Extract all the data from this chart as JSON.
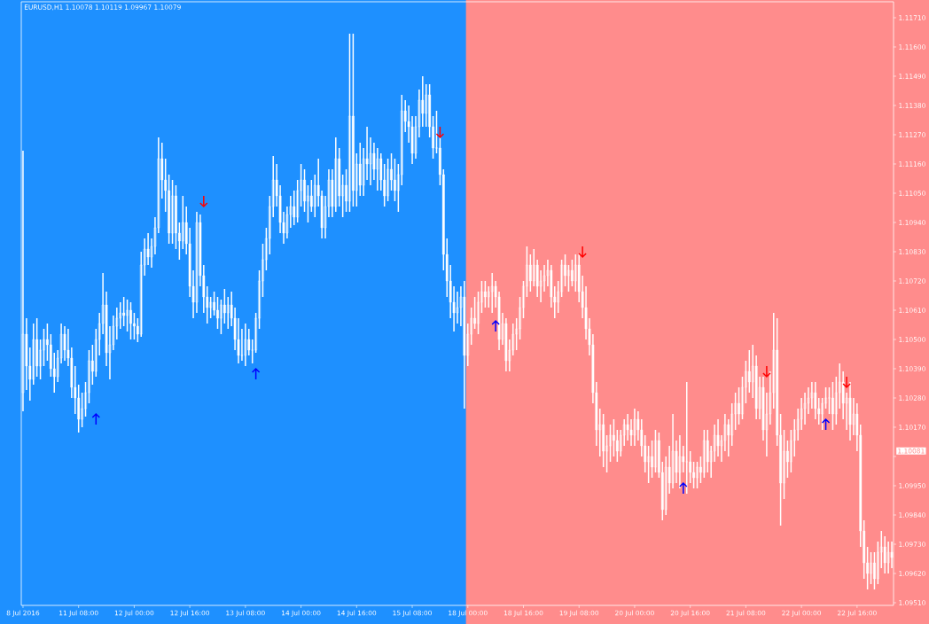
{
  "chart_data": {
    "type": "candlestick",
    "title": "EURUSD,H1  1.10078 1.10119 1.09967 1.10079",
    "color": "#ffffff",
    "categories": [
      "8 Jul 2016",
      null,
      null,
      null,
      null,
      null,
      null,
      null,
      null,
      null,
      null,
      null,
      null,
      null,
      null,
      null,
      "11 Jul 08:00",
      null,
      null,
      null,
      null,
      null,
      null,
      null,
      null,
      null,
      null,
      null,
      null,
      null,
      null,
      null,
      "12 Jul 00:00",
      null,
      null,
      null,
      null,
      null,
      null,
      null,
      null,
      null,
      null,
      null,
      null,
      null,
      null,
      null,
      "12 Jul 16:00",
      null,
      null,
      null,
      null,
      null,
      null,
      null,
      null,
      null,
      null,
      null,
      null,
      null,
      null,
      null,
      "13 Jul 08:00",
      null,
      null,
      null,
      null,
      null,
      null,
      null,
      null,
      null,
      null,
      null,
      null,
      null,
      null,
      null,
      "14 Jul 00:00",
      null,
      null,
      null,
      null,
      null,
      null,
      null,
      null,
      null,
      null,
      null,
      null,
      null,
      null,
      null,
      "14 Jul 16:00",
      null,
      null,
      null,
      null,
      null,
      null,
      null,
      null,
      null,
      null,
      null,
      null,
      null,
      null,
      null,
      "15 Jul 08:00",
      null,
      null,
      null,
      null,
      null,
      null,
      null,
      null,
      null,
      null,
      null,
      null,
      null,
      null,
      null,
      "18 Jul 00:00",
      null,
      null,
      null,
      null,
      null,
      null,
      null,
      null,
      null,
      null,
      null,
      null,
      null,
      null,
      null,
      "18 Jul 16:00",
      null,
      null,
      null,
      null,
      null,
      null,
      null,
      null,
      null,
      null,
      null,
      null,
      null,
      null,
      null,
      "19 Jul 08:00",
      null,
      null,
      null,
      null,
      null,
      null,
      null,
      null,
      null,
      null,
      null,
      null,
      null,
      null,
      null,
      "20 Jul 00:00",
      null,
      null,
      null,
      null,
      null,
      null,
      null,
      null,
      null,
      null,
      null,
      null,
      null,
      null,
      null,
      "20 Jul 16:00",
      null,
      null,
      null,
      null,
      null,
      null,
      null,
      null,
      null,
      null,
      null,
      null,
      null,
      null,
      null,
      "21 Jul 08:00",
      null,
      null,
      null,
      null,
      null,
      null,
      null,
      null,
      null,
      null,
      null,
      null,
      null,
      null,
      null,
      "22 Jul 00:00",
      null,
      null,
      null,
      null,
      null,
      null,
      null,
      null,
      null,
      null,
      null,
      null,
      null,
      null,
      null,
      "22 Jul 16:00",
      null,
      null,
      null,
      null,
      null,
      null,
      null,
      null,
      null,
      null
    ],
    "ohlc": [
      [
        1.103,
        1.1121,
        1.1023,
        1.1052
      ],
      [
        1.1052,
        1.1058,
        1.1031,
        1.104
      ],
      [
        1.104,
        1.1047,
        1.1027,
        1.1035
      ],
      [
        1.1035,
        1.1056,
        1.1033,
        1.105
      ],
      [
        1.105,
        1.1058,
        1.1036,
        1.104
      ],
      [
        1.104,
        1.105,
        1.1035,
        1.1046
      ],
      [
        1.1046,
        1.1054,
        1.104,
        1.105
      ],
      [
        1.105,
        1.1056,
        1.1042,
        1.1048
      ],
      [
        1.1048,
        1.1052,
        1.1036,
        1.1039
      ],
      [
        1.1039,
        1.1045,
        1.103,
        1.1036
      ],
      [
        1.1036,
        1.1046,
        1.1034,
        1.1043
      ],
      [
        1.1043,
        1.1056,
        1.1041,
        1.1052
      ],
      [
        1.1052,
        1.1055,
        1.1042,
        1.1046
      ],
      [
        1.1046,
        1.1054,
        1.104,
        1.1043
      ],
      [
        1.1043,
        1.1047,
        1.1028,
        1.1032
      ],
      [
        1.1032,
        1.104,
        1.1022,
        1.1028
      ],
      [
        1.1028,
        1.1033,
        1.1015,
        1.102
      ],
      [
        1.102,
        1.103,
        1.1017,
        1.1024
      ],
      [
        1.1024,
        1.1034,
        1.1021,
        1.103
      ],
      [
        1.103,
        1.1046,
        1.1026,
        1.1042
      ],
      [
        1.1042,
        1.1048,
        1.1033,
        1.1038
      ],
      [
        1.1038,
        1.1054,
        1.1036,
        1.105
      ],
      [
        1.105,
        1.106,
        1.1044,
        1.1056
      ],
      [
        1.1056,
        1.1075,
        1.1052,
        1.1063
      ],
      [
        1.1063,
        1.1068,
        1.104,
        1.1045
      ],
      [
        1.1045,
        1.1055,
        1.1035,
        1.1048
      ],
      [
        1.1048,
        1.1059,
        1.1046,
        1.1055
      ],
      [
        1.1055,
        1.1062,
        1.105,
        1.1058
      ],
      [
        1.1058,
        1.1064,
        1.1054,
        1.106
      ],
      [
        1.106,
        1.1066,
        1.1055,
        1.1059
      ],
      [
        1.1059,
        1.1065,
        1.1053,
        1.1061
      ],
      [
        1.1061,
        1.1064,
        1.105,
        1.1056
      ],
      [
        1.1056,
        1.106,
        1.105,
        1.1055
      ],
      [
        1.1055,
        1.1058,
        1.1049,
        1.1052
      ],
      [
        1.1052,
        1.1083,
        1.1051,
        1.1078
      ],
      [
        1.1078,
        1.1088,
        1.1074,
        1.1084
      ],
      [
        1.1084,
        1.109,
        1.1078,
        1.1081
      ],
      [
        1.1081,
        1.1088,
        1.1077,
        1.1085
      ],
      [
        1.1085,
        1.1096,
        1.1082,
        1.1092
      ],
      [
        1.1092,
        1.1126,
        1.109,
        1.1118
      ],
      [
        1.1118,
        1.1124,
        1.1103,
        1.111
      ],
      [
        1.111,
        1.1118,
        1.1098,
        1.1106
      ],
      [
        1.1106,
        1.1112,
        1.1086,
        1.109
      ],
      [
        1.109,
        1.111,
        1.1086,
        1.1104
      ],
      [
        1.1104,
        1.1108,
        1.1084,
        1.109
      ],
      [
        1.109,
        1.1094,
        1.108,
        1.1087
      ],
      [
        1.1087,
        1.1104,
        1.1084,
        1.1094
      ],
      [
        1.1094,
        1.11,
        1.1082,
        1.1086
      ],
      [
        1.1086,
        1.1092,
        1.1066,
        1.107
      ],
      [
        1.107,
        1.1076,
        1.1058,
        1.1064
      ],
      [
        1.1064,
        1.1098,
        1.106,
        1.1094
      ],
      [
        1.1094,
        1.1097,
        1.107,
        1.1074
      ],
      [
        1.1074,
        1.1078,
        1.106,
        1.1066
      ],
      [
        1.1066,
        1.107,
        1.1056,
        1.1062
      ],
      [
        1.1062,
        1.1066,
        1.1058,
        1.1064
      ],
      [
        1.1064,
        1.1068,
        1.1059,
        1.1061
      ],
      [
        1.1061,
        1.1066,
        1.1054,
        1.1058
      ],
      [
        1.1058,
        1.1065,
        1.1052,
        1.1063
      ],
      [
        1.1063,
        1.1069,
        1.1056,
        1.106
      ],
      [
        1.106,
        1.1066,
        1.1054,
        1.1063
      ],
      [
        1.1063,
        1.1068,
        1.1055,
        1.1058
      ],
      [
        1.1058,
        1.1062,
        1.1046,
        1.105
      ],
      [
        1.105,
        1.1058,
        1.1041,
        1.1044
      ],
      [
        1.1044,
        1.1054,
        1.1042,
        1.1044
      ],
      [
        1.1044,
        1.1056,
        1.104,
        1.105
      ],
      [
        1.105,
        1.1054,
        1.1044,
        1.1046
      ],
      [
        1.1046,
        1.105,
        1.1041,
        1.1046
      ],
      [
        1.1046,
        1.106,
        1.1045,
        1.1058
      ],
      [
        1.1058,
        1.1076,
        1.1054,
        1.1072
      ],
      [
        1.1072,
        1.1086,
        1.1066,
        1.108
      ],
      [
        1.108,
        1.1092,
        1.1076,
        1.1088
      ],
      [
        1.1088,
        1.1104,
        1.1082,
        1.11
      ],
      [
        1.11,
        1.1119,
        1.1096,
        1.111
      ],
      [
        1.111,
        1.1116,
        1.11,
        1.1104
      ],
      [
        1.1104,
        1.1108,
        1.109,
        1.1094
      ],
      [
        1.1094,
        1.1098,
        1.1086,
        1.109
      ],
      [
        1.109,
        1.11,
        1.1088,
        1.1097
      ],
      [
        1.1097,
        1.1104,
        1.1092,
        1.11
      ],
      [
        1.11,
        1.1106,
        1.1093,
        1.1096
      ],
      [
        1.1096,
        1.111,
        1.1094,
        1.1106
      ],
      [
        1.1106,
        1.1116,
        1.11,
        1.111
      ],
      [
        1.111,
        1.1114,
        1.1098,
        1.1102
      ],
      [
        1.1102,
        1.1108,
        1.1094,
        1.1104
      ],
      [
        1.1104,
        1.111,
        1.1098,
        1.11
      ],
      [
        1.11,
        1.1112,
        1.1096,
        1.1108
      ],
      [
        1.1108,
        1.1118,
        1.11,
        1.1104
      ],
      [
        1.1104,
        1.1106,
        1.1088,
        1.1092
      ],
      [
        1.1092,
        1.1104,
        1.1088,
        1.11
      ],
      [
        1.11,
        1.1114,
        1.1096,
        1.111
      ],
      [
        1.111,
        1.1114,
        1.1096,
        1.11
      ],
      [
        1.11,
        1.1126,
        1.1098,
        1.1118
      ],
      [
        1.1118,
        1.1122,
        1.11,
        1.1104
      ],
      [
        1.1104,
        1.1112,
        1.1096,
        1.1108
      ],
      [
        1.1108,
        1.1114,
        1.1098,
        1.1102
      ],
      [
        1.1102,
        1.1165,
        1.1098,
        1.1134
      ],
      [
        1.1134,
        1.1165,
        1.11,
        1.1106
      ],
      [
        1.1106,
        1.112,
        1.11,
        1.1116
      ],
      [
        1.1116,
        1.1124,
        1.1104,
        1.1108
      ],
      [
        1.1108,
        1.1122,
        1.1104,
        1.1118
      ],
      [
        1.1118,
        1.113,
        1.111,
        1.1116
      ],
      [
        1.1116,
        1.1126,
        1.1108,
        1.112
      ],
      [
        1.112,
        1.1124,
        1.111,
        1.1114
      ],
      [
        1.1114,
        1.1122,
        1.1106,
        1.1118
      ],
      [
        1.1118,
        1.112,
        1.1106,
        1.111
      ],
      [
        1.111,
        1.1116,
        1.11,
        1.1104
      ],
      [
        1.1104,
        1.1118,
        1.1102,
        1.1114
      ],
      [
        1.1114,
        1.112,
        1.1106,
        1.111
      ],
      [
        1.111,
        1.1118,
        1.1102,
        1.1106
      ],
      [
        1.1106,
        1.1116,
        1.1098,
        1.1112
      ],
      [
        1.1112,
        1.1142,
        1.1108,
        1.1136
      ],
      [
        1.1136,
        1.114,
        1.1128,
        1.1132
      ],
      [
        1.1132,
        1.1138,
        1.1124,
        1.113
      ],
      [
        1.113,
        1.1134,
        1.1116,
        1.112
      ],
      [
        1.112,
        1.1134,
        1.1118,
        1.113
      ],
      [
        1.113,
        1.1144,
        1.1126,
        1.114
      ],
      [
        1.114,
        1.1149,
        1.113,
        1.1135
      ],
      [
        1.1135,
        1.1146,
        1.113,
        1.1142
      ],
      [
        1.1142,
        1.1146,
        1.1126,
        1.113
      ],
      [
        1.113,
        1.1134,
        1.1118,
        1.1122
      ],
      [
        1.1122,
        1.1136,
        1.112,
        1.1122
      ],
      [
        1.1122,
        1.1126,
        1.1108,
        1.1112
      ],
      [
        1.1112,
        1.1114,
        1.1076,
        1.1082
      ],
      [
        1.1082,
        1.1088,
        1.1066,
        1.1072
      ],
      [
        1.1072,
        1.1078,
        1.1058,
        1.1064
      ],
      [
        1.1064,
        1.107,
        1.1053,
        1.106
      ],
      [
        1.106,
        1.1068,
        1.1056,
        1.1062
      ],
      [
        1.1062,
        1.107,
        1.1055,
        1.1066
      ],
      [
        1.1066,
        1.1072,
        1.1024,
        1.1044
      ],
      [
        1.1044,
        1.1056,
        1.104,
        1.1052
      ],
      [
        1.1052,
        1.1062,
        1.1048,
        1.1058
      ],
      [
        1.1058,
        1.1066,
        1.1054,
        1.1056
      ],
      [
        1.1056,
        1.1068,
        1.1052,
        1.1064
      ],
      [
        1.1064,
        1.1072,
        1.106,
        1.1068
      ],
      [
        1.1068,
        1.1072,
        1.1062,
        1.1066
      ],
      [
        1.1066,
        1.107,
        1.1062,
        1.1068
      ],
      [
        1.1068,
        1.1075,
        1.106,
        1.107
      ],
      [
        1.107,
        1.1072,
        1.1062,
        1.1066
      ],
      [
        1.1066,
        1.1068,
        1.1046,
        1.105
      ],
      [
        1.105,
        1.106,
        1.1048,
        1.1056
      ],
      [
        1.1056,
        1.1058,
        1.1038,
        1.1042
      ],
      [
        1.1042,
        1.105,
        1.1038,
        1.1046
      ],
      [
        1.1046,
        1.1056,
        1.1044,
        1.1052
      ],
      [
        1.1052,
        1.1058,
        1.1046,
        1.1054
      ],
      [
        1.1054,
        1.1066,
        1.105,
        1.1062
      ],
      [
        1.1062,
        1.1072,
        1.1058,
        1.107
      ],
      [
        1.107,
        1.1085,
        1.1066,
        1.1078
      ],
      [
        1.1078,
        1.1082,
        1.1068,
        1.1072
      ],
      [
        1.1072,
        1.1084,
        1.107,
        1.1078
      ],
      [
        1.1078,
        1.108,
        1.1066,
        1.107
      ],
      [
        1.107,
        1.1076,
        1.1064,
        1.1072
      ],
      [
        1.1072,
        1.1078,
        1.1068,
        1.1074
      ],
      [
        1.1074,
        1.108,
        1.107,
        1.1076
      ],
      [
        1.1076,
        1.1078,
        1.1062,
        1.1066
      ],
      [
        1.1066,
        1.107,
        1.1058,
        1.1064
      ],
      [
        1.1064,
        1.1072,
        1.106,
        1.1068
      ],
      [
        1.1068,
        1.108,
        1.1066,
        1.1078
      ],
      [
        1.1078,
        1.1082,
        1.107,
        1.1074
      ],
      [
        1.1074,
        1.1078,
        1.1068,
        1.1076
      ],
      [
        1.1076,
        1.108,
        1.107,
        1.1072
      ],
      [
        1.1072,
        1.1082,
        1.1068,
        1.1078
      ],
      [
        1.1078,
        1.1082,
        1.1064,
        1.1068
      ],
      [
        1.1068,
        1.1074,
        1.1058,
        1.1062
      ],
      [
        1.1062,
        1.107,
        1.105,
        1.1054
      ],
      [
        1.1054,
        1.1058,
        1.1044,
        1.1048
      ],
      [
        1.1048,
        1.1052,
        1.1026,
        1.103
      ],
      [
        1.103,
        1.1034,
        1.101,
        1.1016
      ],
      [
        1.1016,
        1.1024,
        1.1006,
        1.1018
      ],
      [
        1.1018,
        1.1022,
        1.1002,
        1.1008
      ],
      [
        1.1008,
        1.1014,
        1.1,
        1.101
      ],
      [
        1.101,
        1.1018,
        1.1004,
        1.1014
      ],
      [
        1.1014,
        1.102,
        1.1006,
        1.1012
      ],
      [
        1.1012,
        1.1016,
        1.1004,
        1.1008
      ],
      [
        1.1008,
        1.1016,
        1.1006,
        1.1014
      ],
      [
        1.1014,
        1.102,
        1.101,
        1.1018
      ],
      [
        1.1018,
        1.1022,
        1.1012,
        1.1016
      ],
      [
        1.1016,
        1.102,
        1.101,
        1.1014
      ],
      [
        1.1014,
        1.1024,
        1.101,
        1.102
      ],
      [
        1.102,
        1.1023,
        1.1012,
        1.1016
      ],
      [
        1.1016,
        1.102,
        1.1006,
        1.101
      ],
      [
        1.101,
        1.1014,
        1.1,
        1.1004
      ],
      [
        1.1004,
        1.101,
        1.0996,
        1.1006
      ],
      [
        1.1006,
        1.1012,
        1.0998,
        1.1002
      ],
      [
        1.1002,
        1.1016,
        1.1,
        1.1012
      ],
      [
        1.1012,
        1.1015,
        1.0998,
        1.1
      ],
      [
        1.1,
        1.1004,
        1.0982,
        1.0986
      ],
      [
        1.0986,
        1.1006,
        1.0984,
        1.1002
      ],
      [
        1.1002,
        1.101,
        1.0992,
        1.0996
      ],
      [
        1.0996,
        1.1022,
        1.0994,
        1.1008
      ],
      [
        1.1008,
        1.1012,
        1.0996,
        1.1
      ],
      [
        1.1,
        1.1014,
        1.0994,
        1.1006
      ],
      [
        1.1006,
        1.101,
        1.1,
        1.1004
      ],
      [
        1.1004,
        1.1034,
        1.0992,
        1.1004
      ],
      [
        1.1004,
        1.1008,
        1.0996,
        1.1
      ],
      [
        1.1,
        1.1004,
        1.0994,
        1.0998
      ],
      [
        1.0998,
        1.1004,
        1.0994,
        1.1002
      ],
      [
        1.1002,
        1.1006,
        1.0996,
        1.1
      ],
      [
        1.1,
        1.1016,
        1.0998,
        1.1012
      ],
      [
        1.1012,
        1.1016,
        1.1,
        1.1004
      ],
      [
        1.1004,
        1.101,
        1.0998,
        1.1008
      ],
      [
        1.1008,
        1.1018,
        1.1004,
        1.1014
      ],
      [
        1.1014,
        1.102,
        1.1006,
        1.101
      ],
      [
        1.101,
        1.1014,
        1.1004,
        1.1012
      ],
      [
        1.1012,
        1.1022,
        1.1008,
        1.1018
      ],
      [
        1.1018,
        1.102,
        1.1006,
        1.1014
      ],
      [
        1.1014,
        1.1026,
        1.101,
        1.1022
      ],
      [
        1.1022,
        1.103,
        1.1016,
        1.1026
      ],
      [
        1.1026,
        1.1032,
        1.1018,
        1.1022
      ],
      [
        1.1022,
        1.1036,
        1.102,
        1.1032
      ],
      [
        1.1032,
        1.1042,
        1.1026,
        1.1038
      ],
      [
        1.1038,
        1.1046,
        1.103,
        1.1034
      ],
      [
        1.1034,
        1.1048,
        1.1028,
        1.104
      ],
      [
        1.104,
        1.1044,
        1.102,
        1.1024
      ],
      [
        1.1024,
        1.1036,
        1.102,
        1.1032
      ],
      [
        1.1032,
        1.1036,
        1.1012,
        1.1016
      ],
      [
        1.1016,
        1.103,
        1.1006,
        1.1022
      ],
      [
        1.1022,
        1.1038,
        1.1018,
        1.103
      ],
      [
        1.103,
        1.106,
        1.1024,
        1.1046
      ],
      [
        1.1046,
        1.1058,
        1.101,
        1.1014
      ],
      [
        1.1014,
        1.1022,
        1.098,
        1.0996
      ],
      [
        1.0996,
        1.1016,
        1.099,
        1.1008
      ],
      [
        1.1008,
        1.1012,
        1.0998,
        1.1004
      ],
      [
        1.1004,
        1.1016,
        1.1,
        1.1012
      ],
      [
        1.1012,
        1.102,
        1.1006,
        1.1016
      ],
      [
        1.1016,
        1.1024,
        1.1012,
        1.102
      ],
      [
        1.102,
        1.1028,
        1.1016,
        1.1024
      ],
      [
        1.1024,
        1.103,
        1.1018,
        1.1026
      ],
      [
        1.1026,
        1.1032,
        1.1022,
        1.1028
      ],
      [
        1.1028,
        1.1034,
        1.1024,
        1.103
      ],
      [
        1.103,
        1.1034,
        1.102,
        1.1024
      ],
      [
        1.1024,
        1.1028,
        1.1018,
        1.1022
      ],
      [
        1.1022,
        1.1028,
        1.1016,
        1.1026
      ],
      [
        1.1026,
        1.1032,
        1.1024,
        1.1028
      ],
      [
        1.1028,
        1.1032,
        1.1022,
        1.1028
      ],
      [
        1.1028,
        1.1034,
        1.1016,
        1.1022
      ],
      [
        1.1022,
        1.1036,
        1.1018,
        1.103
      ],
      [
        1.103,
        1.1041,
        1.1024,
        1.1034
      ],
      [
        1.1034,
        1.1038,
        1.102,
        1.1026
      ],
      [
        1.1026,
        1.103,
        1.1016,
        1.1028
      ],
      [
        1.1028,
        1.1034,
        1.1012,
        1.1018
      ],
      [
        1.1018,
        1.1028,
        1.1014,
        1.1022
      ],
      [
        1.1022,
        1.1026,
        1.1008,
        1.1014
      ],
      [
        1.1014,
        1.1018,
        1.0972,
        1.0978
      ],
      [
        1.0978,
        1.0982,
        1.096,
        1.0966
      ],
      [
        1.0966,
        1.0972,
        1.0956,
        1.0962
      ],
      [
        1.0962,
        1.097,
        1.0958,
        1.0966
      ],
      [
        1.0966,
        1.097,
        1.0956,
        1.096
      ],
      [
        1.096,
        1.0974,
        1.0958,
        1.097
      ],
      [
        1.097,
        1.0978,
        1.0964,
        1.0972
      ],
      [
        1.0972,
        1.0976,
        1.0962,
        1.0966
      ],
      [
        1.0966,
        1.0974,
        1.0962,
        1.097
      ],
      [
        1.097,
        1.0974,
        1.0964,
        1.0968
      ]
    ],
    "series": [
      {
        "type": "scatter",
        "color": "#0000ff",
        "values": [
          null,
          null,
          null,
          null,
          null,
          null,
          null,
          null,
          null,
          null,
          null,
          null,
          null,
          null,
          null,
          null,
          null,
          null,
          null,
          null,
          null,
          1.102,
          null,
          null,
          null,
          null,
          null,
          null,
          null,
          null,
          null,
          null,
          null,
          null,
          null,
          null,
          null,
          null,
          null,
          null,
          null,
          null,
          null,
          null,
          null,
          null,
          null,
          null,
          null,
          null,
          null,
          null,
          null,
          null,
          null,
          null,
          null,
          null,
          null,
          null,
          null,
          null,
          null,
          null,
          null,
          null,
          null,
          1.1037,
          null,
          null,
          null,
          null,
          null,
          null,
          null,
          null,
          null,
          null,
          null,
          null,
          null,
          null,
          null,
          null,
          null,
          null,
          null,
          null,
          null,
          null,
          null,
          null,
          null,
          null,
          null,
          null,
          null,
          null,
          null,
          null,
          null,
          null,
          null,
          null,
          null,
          null,
          null,
          null,
          null,
          null,
          null,
          null,
          null,
          null,
          null,
          null,
          null,
          null,
          null,
          null,
          null,
          null,
          null,
          null,
          null,
          null,
          null,
          null,
          null,
          null,
          null,
          null,
          null,
          null,
          null,
          null,
          1.1055,
          null,
          null,
          null,
          null,
          null,
          null,
          null,
          null,
          null,
          null,
          null,
          null,
          null,
          null,
          null,
          null,
          null,
          null,
          null,
          null,
          null,
          null,
          null,
          null,
          null,
          null,
          null,
          null,
          null,
          null,
          null,
          null,
          null,
          null,
          null,
          null,
          null,
          null,
          null,
          null,
          null,
          null,
          null,
          null,
          null,
          null,
          null,
          null,
          null,
          null,
          null,
          null,
          null,
          1.0994,
          null,
          null,
          null,
          null,
          null,
          null,
          null,
          null,
          null,
          null,
          null,
          null,
          null,
          null,
          null,
          null,
          null,
          null,
          null,
          null,
          null,
          null,
          null,
          null,
          null,
          null,
          null,
          null,
          null,
          null,
          null,
          null,
          null,
          null,
          null,
          null,
          null,
          null,
          null,
          null,
          1.1018,
          null,
          null,
          null,
          null,
          null,
          null,
          null,
          null,
          null,
          null,
          null,
          null,
          null,
          null,
          null,
          null,
          null,
          null,
          null
        ]
      },
      {
        "type": "scatter",
        "color": "#ff0000",
        "values": [
          null,
          null,
          null,
          null,
          null,
          null,
          null,
          null,
          null,
          null,
          null,
          null,
          null,
          null,
          null,
          null,
          null,
          null,
          null,
          null,
          null,
          null,
          null,
          null,
          null,
          null,
          null,
          null,
          null,
          null,
          null,
          null,
          null,
          null,
          null,
          null,
          null,
          null,
          null,
          null,
          null,
          null,
          null,
          null,
          null,
          null,
          null,
          null,
          null,
          null,
          null,
          null,
          1.1102,
          null,
          null,
          null,
          null,
          null,
          null,
          null,
          null,
          null,
          null,
          null,
          null,
          null,
          null,
          null,
          null,
          null,
          null,
          null,
          null,
          null,
          null,
          null,
          null,
          null,
          null,
          null,
          null,
          null,
          null,
          null,
          null,
          null,
          null,
          null,
          null,
          null,
          null,
          null,
          null,
          null,
          null,
          null,
          null,
          null,
          null,
          null,
          null,
          null,
          null,
          null,
          null,
          null,
          null,
          null,
          null,
          null,
          null,
          null,
          null,
          null,
          null,
          null,
          null,
          null,
          null,
          null,
          1.1128,
          null,
          null,
          null,
          null,
          null,
          null,
          null,
          null,
          null,
          null,
          null,
          null,
          null,
          null,
          null,
          null,
          null,
          null,
          null,
          null,
          null,
          null,
          null,
          null,
          null,
          null,
          null,
          null,
          null,
          null,
          null,
          null,
          null,
          null,
          null,
          null,
          null,
          null,
          null,
          null,
          1.1083,
          null,
          null,
          null,
          null,
          null,
          null,
          null,
          null,
          null,
          null,
          null,
          null,
          null,
          null,
          null,
          null,
          null,
          null,
          null,
          null,
          null,
          null,
          null,
          null,
          null,
          null,
          null,
          null,
          null,
          null,
          null,
          null,
          null,
          null,
          null,
          null,
          null,
          null,
          null,
          null,
          null,
          null,
          null,
          null,
          null,
          null,
          null,
          null,
          null,
          null,
          null,
          null,
          1.1038,
          null,
          null,
          null,
          null,
          null,
          null,
          null,
          null,
          null,
          null,
          null,
          null,
          null,
          null,
          null,
          null,
          null,
          null,
          null,
          null,
          null,
          null,
          1.1034,
          null,
          null,
          null,
          null,
          null,
          null,
          null,
          null,
          null,
          null,
          null,
          null,
          null
        ]
      }
    ],
    "bands": [
      {
        "axis": "x",
        "from": "8 Jul 2016",
        "to": "18 Jul 00:00",
        "color": "#1e90ff"
      },
      {
        "axis": "x",
        "from": "18 Jul 00:00",
        "to": "22 Jul 16:00",
        "color": "#ff8c8c"
      }
    ],
    "annotations": [
      "1.10081"
    ],
    "ylim": [
      1.095,
      1.1177
    ],
    "yticks": [
      {
        "value": 1.0951,
        "label": "1.09510"
      },
      {
        "value": 1.0962,
        "label": "1.09620"
      },
      {
        "value": 1.0973,
        "label": "1.09730"
      },
      {
        "value": 1.0984,
        "label": "1.09840"
      },
      {
        "value": 1.0995,
        "label": "1.09950"
      },
      {
        "value": 1.1006,
        "label": null
      },
      {
        "value": 1.1017,
        "label": "1.10170"
      },
      {
        "value": 1.1028,
        "label": "1.10280"
      },
      {
        "value": 1.1039,
        "label": "1.10390"
      },
      {
        "value": 1.105,
        "label": "1.10500"
      },
      {
        "value": 1.1061,
        "label": "1.10610"
      },
      {
        "value": 1.1072,
        "label": "1.10720"
      },
      {
        "value": 1.1083,
        "label": "1.10830"
      },
      {
        "value": 1.1094,
        "label": "1.10940"
      },
      {
        "value": 1.1105,
        "label": "1.11050"
      },
      {
        "value": 1.1116,
        "label": "1.11160"
      },
      {
        "value": 1.1127,
        "label": "1.11270"
      },
      {
        "value": 1.1138,
        "label": "1.11380"
      },
      {
        "value": 1.1149,
        "label": "1.11490"
      },
      {
        "value": 1.116,
        "label": "1.11600"
      },
      {
        "value": 1.1171,
        "label": "1.11710"
      }
    ]
  }
}
